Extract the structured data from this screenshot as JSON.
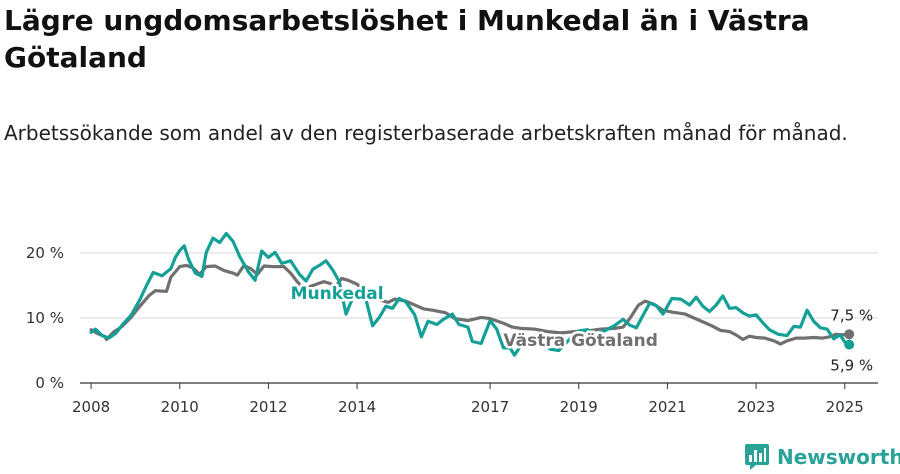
{
  "header": {
    "title": "Lägre ungdomsarbetslöshet i Munkedal än i Västra Götaland",
    "subtitle": "Arbetssökande som andel av den registerbaserade arbetskraften månad för månad."
  },
  "colors": {
    "munkedal": "#14a096",
    "vastra_gotaland": "#707070",
    "grid": "#d9d9d9",
    "axis": "#333333",
    "logo": "#29a398"
  },
  "logo": {
    "text": "Newsworthy"
  },
  "chart_data": {
    "type": "line",
    "title": "Lägre ungdomsarbetslöshet i Munkedal än i Västra Götaland",
    "xlabel": "",
    "ylabel": "",
    "xlim": [
      2007.75,
      2025.75
    ],
    "ylim": [
      0,
      20
    ],
    "grid": true,
    "y_ticks": [
      {
        "value": 0,
        "label": "0 %"
      },
      {
        "value": 10,
        "label": "10 %"
      },
      {
        "value": 20,
        "label": "20 %"
      }
    ],
    "x_ticks": [
      {
        "value": 2008,
        "label": "2008"
      },
      {
        "value": 2010,
        "label": "2010"
      },
      {
        "value": 2012,
        "label": "2012"
      },
      {
        "value": 2014,
        "label": "2014"
      },
      {
        "value": 2017,
        "label": "2017"
      },
      {
        "value": 2019,
        "label": "2019"
      },
      {
        "value": 2021,
        "label": "2021"
      },
      {
        "value": 2023,
        "label": "2023"
      },
      {
        "value": 2025,
        "label": "2025"
      }
    ],
    "series": [
      {
        "name": "Västra Götaland",
        "label": "Västra Götaland",
        "end_label": "7,5 %",
        "points": [
          [
            2008.0,
            8.2
          ],
          [
            2008.15,
            7.6
          ],
          [
            2008.3,
            7.2
          ],
          [
            2008.35,
            6.7
          ],
          [
            2008.5,
            7.8
          ],
          [
            2008.7,
            8.7
          ],
          [
            2008.9,
            10.1
          ],
          [
            2009.1,
            11.8
          ],
          [
            2009.3,
            13.4
          ],
          [
            2009.45,
            14.2
          ],
          [
            2009.7,
            14.1
          ],
          [
            2009.8,
            16.3
          ],
          [
            2010.0,
            17.9
          ],
          [
            2010.15,
            18.1
          ],
          [
            2010.3,
            17.7
          ],
          [
            2010.45,
            16.7
          ],
          [
            2010.6,
            17.9
          ],
          [
            2010.8,
            18.0
          ],
          [
            2011.0,
            17.3
          ],
          [
            2011.2,
            16.9
          ],
          [
            2011.3,
            16.6
          ],
          [
            2011.45,
            18.1
          ],
          [
            2011.6,
            17.6
          ],
          [
            2011.75,
            16.7
          ],
          [
            2011.9,
            18.0
          ],
          [
            2012.1,
            17.9
          ],
          [
            2012.35,
            17.9
          ],
          [
            2012.5,
            16.9
          ],
          [
            2012.65,
            15.6
          ],
          [
            2012.8,
            14.4
          ],
          [
            2013.0,
            15.0
          ],
          [
            2013.25,
            15.6
          ],
          [
            2013.4,
            15.3
          ],
          [
            2013.5,
            14.7
          ],
          [
            2013.65,
            16.1
          ],
          [
            2013.8,
            15.8
          ],
          [
            2014.0,
            15.2
          ],
          [
            2014.2,
            14.1
          ],
          [
            2014.35,
            13.3
          ],
          [
            2014.5,
            12.8
          ],
          [
            2014.7,
            12.4
          ],
          [
            2014.85,
            12.9
          ],
          [
            2015.1,
            12.6
          ],
          [
            2015.3,
            12.0
          ],
          [
            2015.5,
            11.4
          ],
          [
            2015.7,
            11.2
          ],
          [
            2016.0,
            10.8
          ],
          [
            2016.2,
            9.9
          ],
          [
            2016.5,
            9.6
          ],
          [
            2016.8,
            10.1
          ],
          [
            2017.0,
            9.9
          ],
          [
            2017.3,
            9.2
          ],
          [
            2017.5,
            8.6
          ],
          [
            2017.7,
            8.4
          ],
          [
            2018.0,
            8.3
          ],
          [
            2018.3,
            7.9
          ],
          [
            2018.6,
            7.7
          ],
          [
            2018.9,
            7.9
          ],
          [
            2019.2,
            8.0
          ],
          [
            2019.5,
            8.3
          ],
          [
            2019.8,
            8.4
          ],
          [
            2020.0,
            8.6
          ],
          [
            2020.15,
            9.9
          ],
          [
            2020.35,
            12.0
          ],
          [
            2020.5,
            12.6
          ],
          [
            2020.7,
            12.1
          ],
          [
            2020.9,
            11.2
          ],
          [
            2021.1,
            10.9
          ],
          [
            2021.4,
            10.6
          ],
          [
            2021.6,
            10.0
          ],
          [
            2021.8,
            9.4
          ],
          [
            2022.0,
            8.8
          ],
          [
            2022.2,
            8.1
          ],
          [
            2022.4,
            7.9
          ],
          [
            2022.55,
            7.4
          ],
          [
            2022.7,
            6.7
          ],
          [
            2022.85,
            7.2
          ],
          [
            2023.0,
            7.0
          ],
          [
            2023.2,
            6.9
          ],
          [
            2023.4,
            6.5
          ],
          [
            2023.55,
            6.0
          ],
          [
            2023.7,
            6.5
          ],
          [
            2023.9,
            6.9
          ],
          [
            2024.1,
            6.9
          ],
          [
            2024.3,
            7.0
          ],
          [
            2024.5,
            6.9
          ],
          [
            2024.65,
            7.1
          ],
          [
            2024.8,
            7.5
          ],
          [
            2025.0,
            7.4
          ],
          [
            2025.1,
            7.5
          ]
        ]
      },
      {
        "name": "Munkedal",
        "label": "Munkedal",
        "end_label": "5,9 %",
        "points": [
          [
            2008.0,
            7.8
          ],
          [
            2008.1,
            8.3
          ],
          [
            2008.25,
            7.3
          ],
          [
            2008.4,
            6.9
          ],
          [
            2008.55,
            7.6
          ],
          [
            2008.7,
            8.9
          ],
          [
            2008.9,
            10.4
          ],
          [
            2009.1,
            12.8
          ],
          [
            2009.25,
            15.0
          ],
          [
            2009.4,
            17.0
          ],
          [
            2009.6,
            16.5
          ],
          [
            2009.8,
            17.6
          ],
          [
            2009.9,
            19.3
          ],
          [
            2010.0,
            20.4
          ],
          [
            2010.1,
            21.1
          ],
          [
            2010.2,
            19.0
          ],
          [
            2010.35,
            16.9
          ],
          [
            2010.5,
            16.4
          ],
          [
            2010.6,
            20.1
          ],
          [
            2010.75,
            22.3
          ],
          [
            2010.9,
            21.6
          ],
          [
            2011.05,
            23.0
          ],
          [
            2011.2,
            21.8
          ],
          [
            2011.35,
            19.5
          ],
          [
            2011.55,
            17.1
          ],
          [
            2011.7,
            15.8
          ],
          [
            2011.85,
            20.3
          ],
          [
            2012.0,
            19.3
          ],
          [
            2012.15,
            20.1
          ],
          [
            2012.3,
            18.4
          ],
          [
            2012.5,
            18.8
          ],
          [
            2012.7,
            16.7
          ],
          [
            2012.85,
            15.7
          ],
          [
            2013.0,
            17.5
          ],
          [
            2013.15,
            18.1
          ],
          [
            2013.3,
            18.8
          ],
          [
            2013.45,
            17.4
          ],
          [
            2013.6,
            15.6
          ],
          [
            2013.75,
            10.6
          ],
          [
            2013.9,
            13.1
          ],
          [
            2014.05,
            14.2
          ],
          [
            2014.2,
            12.8
          ],
          [
            2014.35,
            8.8
          ],
          [
            2014.5,
            10.1
          ],
          [
            2014.65,
            11.8
          ],
          [
            2014.8,
            11.5
          ],
          [
            2014.95,
            13.0
          ],
          [
            2015.1,
            12.5
          ],
          [
            2015.3,
            10.5
          ],
          [
            2015.45,
            7.1
          ],
          [
            2015.6,
            9.5
          ],
          [
            2015.8,
            9.0
          ],
          [
            2015.95,
            9.8
          ],
          [
            2016.15,
            10.6
          ],
          [
            2016.3,
            9.0
          ],
          [
            2016.5,
            8.6
          ],
          [
            2016.6,
            6.4
          ],
          [
            2016.8,
            6.1
          ],
          [
            2017.0,
            9.6
          ],
          [
            2017.15,
            8.3
          ],
          [
            2017.3,
            5.4
          ],
          [
            2017.45,
            5.4
          ],
          [
            2017.55,
            4.3
          ],
          [
            2017.7,
            5.8
          ],
          [
            2017.9,
            6.6
          ],
          [
            2018.05,
            7.3
          ],
          [
            2018.2,
            6.9
          ],
          [
            2018.35,
            5.2
          ],
          [
            2018.55,
            5.0
          ],
          [
            2018.7,
            6.1
          ],
          [
            2018.85,
            7.1
          ],
          [
            2019.0,
            8.0
          ],
          [
            2019.2,
            8.2
          ],
          [
            2019.4,
            7.5
          ],
          [
            2019.6,
            8.1
          ],
          [
            2019.8,
            8.8
          ],
          [
            2020.0,
            9.8
          ],
          [
            2020.15,
            8.9
          ],
          [
            2020.3,
            8.5
          ],
          [
            2020.45,
            10.4
          ],
          [
            2020.6,
            12.3
          ],
          [
            2020.75,
            11.9
          ],
          [
            2020.9,
            10.6
          ],
          [
            2021.1,
            13.0
          ],
          [
            2021.3,
            12.9
          ],
          [
            2021.5,
            12.0
          ],
          [
            2021.65,
            13.2
          ],
          [
            2021.8,
            11.8
          ],
          [
            2021.95,
            11.0
          ],
          [
            2022.1,
            12.0
          ],
          [
            2022.25,
            13.4
          ],
          [
            2022.4,
            11.5
          ],
          [
            2022.55,
            11.6
          ],
          [
            2022.7,
            10.8
          ],
          [
            2022.85,
            10.3
          ],
          [
            2023.0,
            10.5
          ],
          [
            2023.15,
            9.3
          ],
          [
            2023.3,
            8.2
          ],
          [
            2023.5,
            7.5
          ],
          [
            2023.7,
            7.3
          ],
          [
            2023.85,
            8.7
          ],
          [
            2024.0,
            8.6
          ],
          [
            2024.15,
            11.2
          ],
          [
            2024.3,
            9.5
          ],
          [
            2024.45,
            8.5
          ],
          [
            2024.6,
            8.3
          ],
          [
            2024.75,
            6.8
          ],
          [
            2024.9,
            7.4
          ],
          [
            2025.0,
            6.3
          ],
          [
            2025.1,
            5.9
          ]
        ]
      }
    ]
  }
}
